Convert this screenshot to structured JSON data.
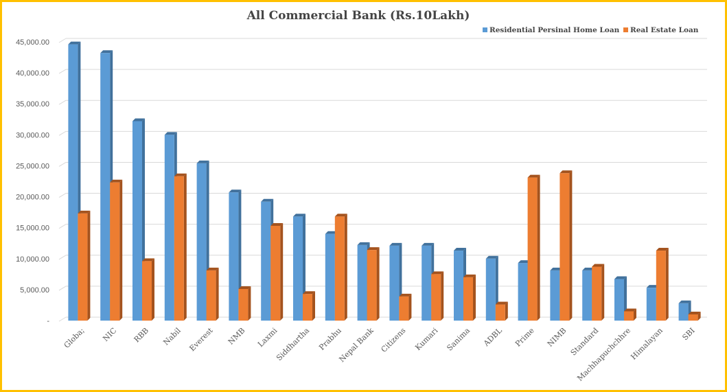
{
  "chart_data": {
    "type": "bar",
    "title": "All Commercial Bank (Rs.10Lakh)",
    "xlabel": "",
    "ylabel": "",
    "ylim": [
      0,
      45000
    ],
    "yticks": [
      "-",
      "5,000.00",
      "10,000.00",
      "15,000.00",
      "20,000.00",
      "25,000.00",
      "30,000.00",
      "35,000.00",
      "40,000.00",
      "45,000.00"
    ],
    "grid": true,
    "legend_position": "top-right",
    "categories": [
      "Globa;",
      "NIC",
      "RBB",
      "Nabil",
      "Everest",
      "NMB",
      "Laxmi",
      "Siddhartha",
      "Prabhu",
      "Nepal Bank",
      "Citizens",
      "Kumari",
      "Sanima",
      "ADBL",
      "Prime",
      "NIMB",
      "Standard",
      "Machhapuchchhre",
      "Himalayan",
      "SBI"
    ],
    "series": [
      {
        "name": "Residential Persinal Home Loan",
        "color": "#5B9BD5",
        "side": "#41719C",
        "values": [
          44600,
          43200,
          32200,
          30000,
          25400,
          20700,
          19200,
          16800,
          14000,
          12200,
          12100,
          12100,
          11300,
          10000,
          9300,
          8100,
          8100,
          6700,
          5300,
          2800
        ]
      },
      {
        "name": "Real Estate Loan",
        "color": "#ED7D31",
        "side": "#A4531E",
        "values": [
          17300,
          22300,
          9600,
          23300,
          8100,
          5100,
          15300,
          4300,
          16800,
          11400,
          3900,
          7500,
          7000,
          2600,
          23100,
          23800,
          8700,
          1500,
          11300,
          1000
        ]
      }
    ]
  }
}
